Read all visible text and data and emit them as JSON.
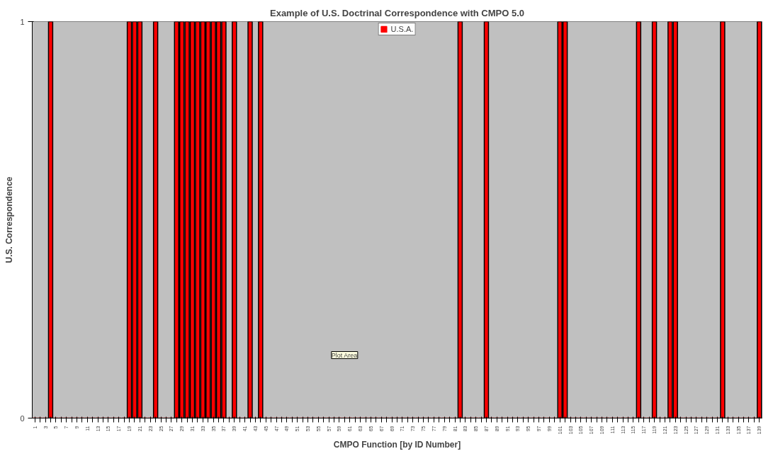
{
  "chart_data": {
    "type": "bar",
    "title": "Example of U.S. Doctrinal Correspondence with CMPO 5.0",
    "xlabel": "CMPO Function [by ID Number]",
    "ylabel": "U.S. Correspondence",
    "categories": [
      "1",
      null,
      "3",
      null,
      "5",
      null,
      "7",
      null,
      "9",
      null,
      "11",
      null,
      "13",
      null,
      "15",
      null,
      "17",
      null,
      "19",
      null,
      "21",
      null,
      "23",
      null,
      "25",
      null,
      "27",
      null,
      "29",
      null,
      "31",
      null,
      "33",
      null,
      "35",
      null,
      "37",
      null,
      "39",
      null,
      "41",
      null,
      "43",
      null,
      "45",
      null,
      "47",
      null,
      "49",
      null,
      "51",
      null,
      "53",
      null,
      "55",
      null,
      "57",
      null,
      "59",
      null,
      "61",
      null,
      "63",
      null,
      "65",
      null,
      "67",
      null,
      "69",
      null,
      "71",
      null,
      "73",
      null,
      "75",
      null,
      "77",
      null,
      "79",
      null,
      "81",
      null,
      "83",
      null,
      "85",
      null,
      "87",
      null,
      "89",
      null,
      "91",
      null,
      "93",
      null,
      "95",
      null,
      "97",
      null,
      "99",
      null,
      "101",
      null,
      "103",
      null,
      "105",
      null,
      "107",
      null,
      "109",
      null,
      "111",
      null,
      "113",
      null,
      "115",
      null,
      "117",
      null,
      "119",
      null,
      "121",
      null,
      "123",
      null,
      "125",
      null,
      "127",
      null,
      "129",
      null,
      "131",
      null,
      "133",
      null,
      "135",
      null,
      "137",
      null,
      "139"
    ],
    "series": [
      {
        "name": "U.S.A.",
        "color": "#ff0000",
        "values": [
          0,
          0,
          0,
          1,
          0,
          0,
          0,
          0,
          0,
          0,
          0,
          0,
          0,
          0,
          0,
          0,
          0,
          0,
          1,
          1,
          1,
          0,
          0,
          1,
          0,
          0,
          0,
          1,
          1,
          1,
          1,
          1,
          1,
          1,
          1,
          1,
          1,
          0,
          1,
          0,
          0,
          1,
          0,
          1,
          0,
          0,
          0,
          0,
          0,
          0,
          0,
          0,
          0,
          0,
          0,
          0,
          0,
          0,
          0,
          0,
          0,
          0,
          0,
          0,
          0,
          0,
          0,
          0,
          0,
          0,
          0,
          0,
          0,
          0,
          0,
          0,
          0,
          0,
          0,
          0,
          0,
          1,
          0,
          0,
          0,
          0,
          1,
          0,
          0,
          0,
          0,
          0,
          0,
          0,
          0,
          0,
          0,
          0,
          0,
          0,
          1,
          1,
          0,
          0,
          0,
          0,
          0,
          0,
          0,
          0,
          0,
          0,
          0,
          0,
          0,
          1,
          0,
          0,
          1,
          0,
          0,
          1,
          1,
          0,
          0,
          0,
          0,
          0,
          0,
          0,
          0,
          1,
          0,
          0,
          0,
          0,
          0,
          0,
          1
        ]
      }
    ],
    "ylim": [
      0,
      1
    ],
    "yticks": [
      0,
      1
    ],
    "grid": false,
    "legend": "top",
    "annotations": [
      "Plot Area"
    ]
  }
}
